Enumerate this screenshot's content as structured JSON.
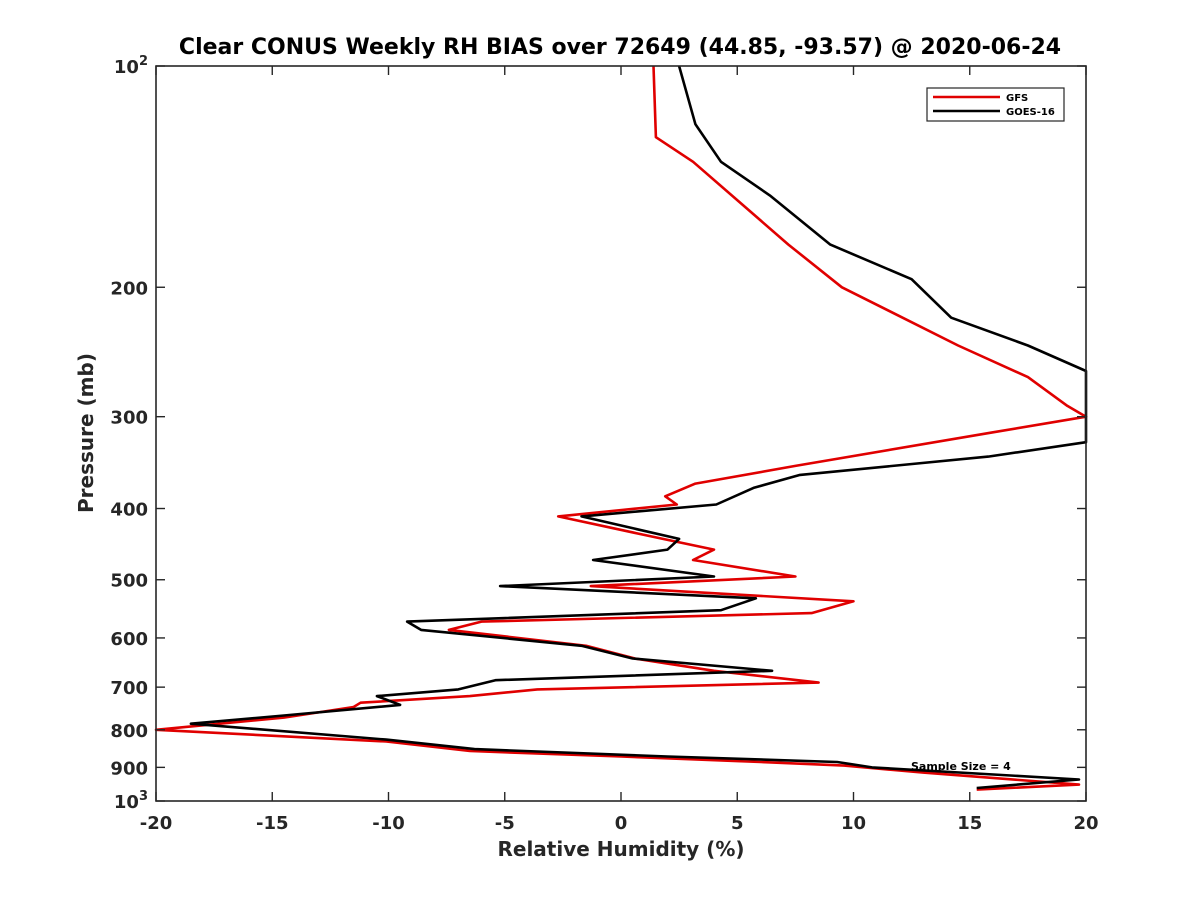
{
  "chart_data": {
    "type": "line",
    "title": "Clear CONUS Weekly RH BIAS over 72649 (44.85, -93.57) @ 2020-06-24",
    "xlabel": "Relative Humidity (%)",
    "ylabel": "Pressure (mb)",
    "xlim": [
      -20,
      20
    ],
    "ylim": [
      100,
      1000
    ],
    "y_scale": "log",
    "y_reversed": true,
    "grid": false,
    "legend_position": "top-right",
    "x_ticks": [
      -20,
      -15,
      -10,
      -5,
      0,
      5,
      10,
      15,
      20
    ],
    "x_tick_labels": [
      "-20",
      "-15",
      "-10",
      "-5",
      "0",
      "5",
      "10",
      "15",
      "20"
    ],
    "y_ticks": [
      100,
      200,
      300,
      400,
      500,
      600,
      700,
      800,
      900,
      1000
    ],
    "y_tick_labels": [
      {
        "base": "10",
        "sup": "2"
      },
      {
        "base": "200",
        "sup": ""
      },
      {
        "base": "300",
        "sup": ""
      },
      {
        "base": "400",
        "sup": ""
      },
      {
        "base": "500",
        "sup": ""
      },
      {
        "base": "600",
        "sup": ""
      },
      {
        "base": "700",
        "sup": ""
      },
      {
        "base": "800",
        "sup": ""
      },
      {
        "base": "900",
        "sup": ""
      },
      {
        "base": "10",
        "sup": "3"
      }
    ],
    "annotation": "Sample Size = 4",
    "series": [
      {
        "name": "GFS",
        "color": "#e00000",
        "points": [
          [
            1.4,
            100
          ],
          [
            1.5,
            125
          ],
          [
            3.1,
            135
          ],
          [
            7.2,
            175
          ],
          [
            9.5,
            200
          ],
          [
            14.5,
            240
          ],
          [
            17.5,
            265
          ],
          [
            19.2,
            290
          ],
          [
            20.0,
            300
          ],
          [
            16.0,
            315
          ],
          [
            7.5,
            350
          ],
          [
            3.2,
            370
          ],
          [
            1.9,
            385
          ],
          [
            2.4,
            395
          ],
          [
            -2.7,
            410
          ],
          [
            1.8,
            440
          ],
          [
            4.0,
            455
          ],
          [
            3.1,
            470
          ],
          [
            7.5,
            495
          ],
          [
            -1.3,
            510
          ],
          [
            10.0,
            535
          ],
          [
            8.2,
            555
          ],
          [
            -6.0,
            570
          ],
          [
            -7.4,
            585
          ],
          [
            -1.5,
            615
          ],
          [
            0.6,
            640
          ],
          [
            4.0,
            665
          ],
          [
            8.5,
            690
          ],
          [
            -3.6,
            705
          ],
          [
            -6.5,
            720
          ],
          [
            -11.2,
            735
          ],
          [
            -11.5,
            745
          ],
          [
            -14.5,
            770
          ],
          [
            -20.0,
            800
          ],
          [
            -10.1,
            830
          ],
          [
            -6.5,
            855
          ],
          [
            0.0,
            870
          ],
          [
            6.0,
            885
          ],
          [
            9.6,
            895
          ],
          [
            13.0,
            915
          ],
          [
            19.7,
            950
          ],
          [
            15.3,
            965
          ]
        ]
      },
      {
        "name": "GOES-16",
        "color": "#000000",
        "points": [
          [
            2.5,
            100
          ],
          [
            3.2,
            120
          ],
          [
            4.3,
            135
          ],
          [
            6.4,
            150
          ],
          [
            9.0,
            175
          ],
          [
            12.5,
            195
          ],
          [
            14.2,
            220
          ],
          [
            17.5,
            240
          ],
          [
            20.0,
            260
          ],
          [
            20.0,
            325
          ],
          [
            15.8,
            340
          ],
          [
            7.7,
            360
          ],
          [
            5.7,
            375
          ],
          [
            4.1,
            395
          ],
          [
            -1.7,
            410
          ],
          [
            2.5,
            440
          ],
          [
            2.0,
            455
          ],
          [
            -1.2,
            470
          ],
          [
            4.0,
            495
          ],
          [
            -5.2,
            510
          ],
          [
            5.8,
            530
          ],
          [
            4.3,
            550
          ],
          [
            -9.2,
            570
          ],
          [
            -8.6,
            585
          ],
          [
            -1.7,
            615
          ],
          [
            0.5,
            640
          ],
          [
            6.5,
            665
          ],
          [
            -5.4,
            685
          ],
          [
            -7.0,
            705
          ],
          [
            -10.5,
            720
          ],
          [
            -9.5,
            740
          ],
          [
            -14.5,
            765
          ],
          [
            -18.5,
            785
          ],
          [
            -10.1,
            825
          ],
          [
            -6.3,
            850
          ],
          [
            2.0,
            870
          ],
          [
            9.3,
            885
          ],
          [
            10.8,
            900
          ],
          [
            19.7,
            935
          ],
          [
            15.3,
            960
          ]
        ]
      }
    ]
  }
}
